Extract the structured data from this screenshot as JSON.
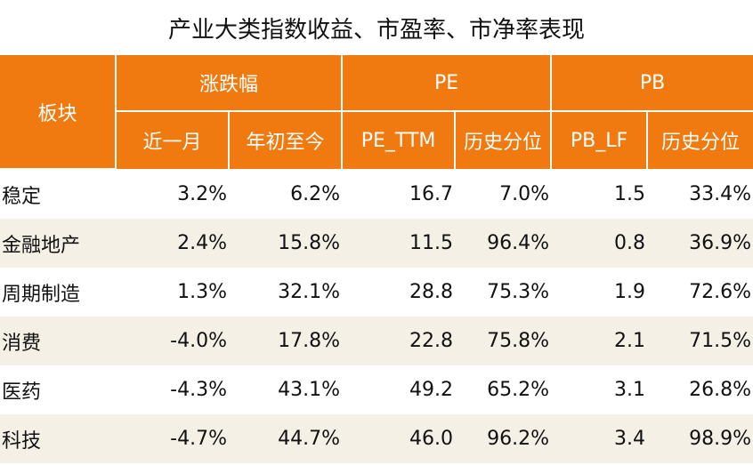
{
  "title": "产业大类指数收益、市盈率、市净率表现",
  "header": {
    "block": "板块",
    "groups": [
      "涨跌幅",
      "PE",
      "PB"
    ],
    "subcols": [
      "近一月",
      "年初至今",
      "PE_TTM",
      "历史分位",
      "PB_LF",
      "历史分位"
    ]
  },
  "rows": [
    {
      "name": "稳定",
      "values": [
        "3.2%",
        "6.2%",
        "16.7",
        "7.0%",
        "1.5",
        "33.4%"
      ]
    },
    {
      "name": "金融地产",
      "values": [
        "2.4%",
        "15.8%",
        "11.5",
        "96.4%",
        "0.8",
        "36.9%"
      ]
    },
    {
      "name": "周期制造",
      "values": [
        "1.3%",
        "32.1%",
        "28.8",
        "75.3%",
        "1.9",
        "72.6%"
      ]
    },
    {
      "name": "消费",
      "values": [
        "-4.0%",
        "17.8%",
        "22.8",
        "75.8%",
        "2.1",
        "71.5%"
      ]
    },
    {
      "name": "医药",
      "values": [
        "-4.3%",
        "43.1%",
        "49.2",
        "65.2%",
        "3.1",
        "26.8%"
      ]
    },
    {
      "name": "科技",
      "values": [
        "-4.7%",
        "44.7%",
        "46.0",
        "96.2%",
        "3.4",
        "98.9%"
      ]
    }
  ],
  "colors": {
    "header": "#f07a0f",
    "header_text": "#ffffff",
    "alt_row": "#f5f0e6"
  }
}
